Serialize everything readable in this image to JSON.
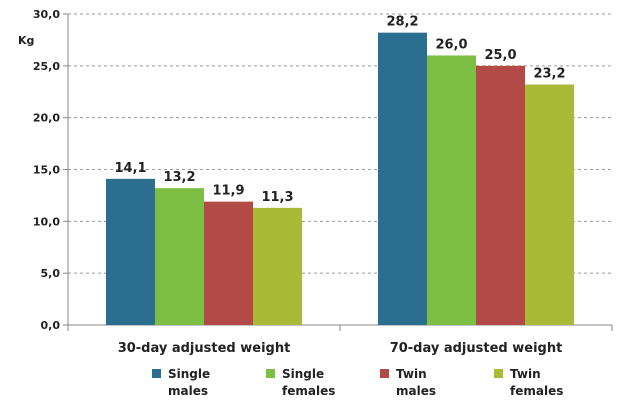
{
  "chart_data": {
    "type": "bar",
    "ylabel": "Kg",
    "ylim": [
      0,
      30
    ],
    "ytick_step": 5,
    "ytick_labels": [
      "0,0",
      "5,0",
      "10,0",
      "15,0",
      "20,0",
      "25,0",
      "30,0"
    ],
    "grid": "horizontal dashed",
    "legend_position": "bottom",
    "categories": [
      "30-day adjusted weight",
      "70-day adjusted weight"
    ],
    "series": [
      {
        "name": "Single males",
        "legend_lines": [
          "Single",
          "males"
        ],
        "color": "#2C6E8F",
        "values": [
          14.1,
          28.2
        ],
        "labels": [
          "14,1",
          "28,2"
        ]
      },
      {
        "name": "Single females",
        "legend_lines": [
          "Single",
          "females"
        ],
        "color": "#7DBE44",
        "values": [
          13.2,
          26.0
        ],
        "labels": [
          "13,2",
          "26,0"
        ]
      },
      {
        "name": "Twin males",
        "legend_lines": [
          "Twin",
          "males"
        ],
        "color": "#B24A48",
        "values": [
          11.9,
          25.0
        ],
        "labels": [
          "11,9",
          "25,0"
        ]
      },
      {
        "name": "Twin females",
        "legend_lines": [
          "Twin",
          "females"
        ],
        "color": "#A9BA37",
        "values": [
          11.3,
          23.2
        ],
        "labels": [
          "11,3",
          "23,2"
        ]
      }
    ]
  }
}
